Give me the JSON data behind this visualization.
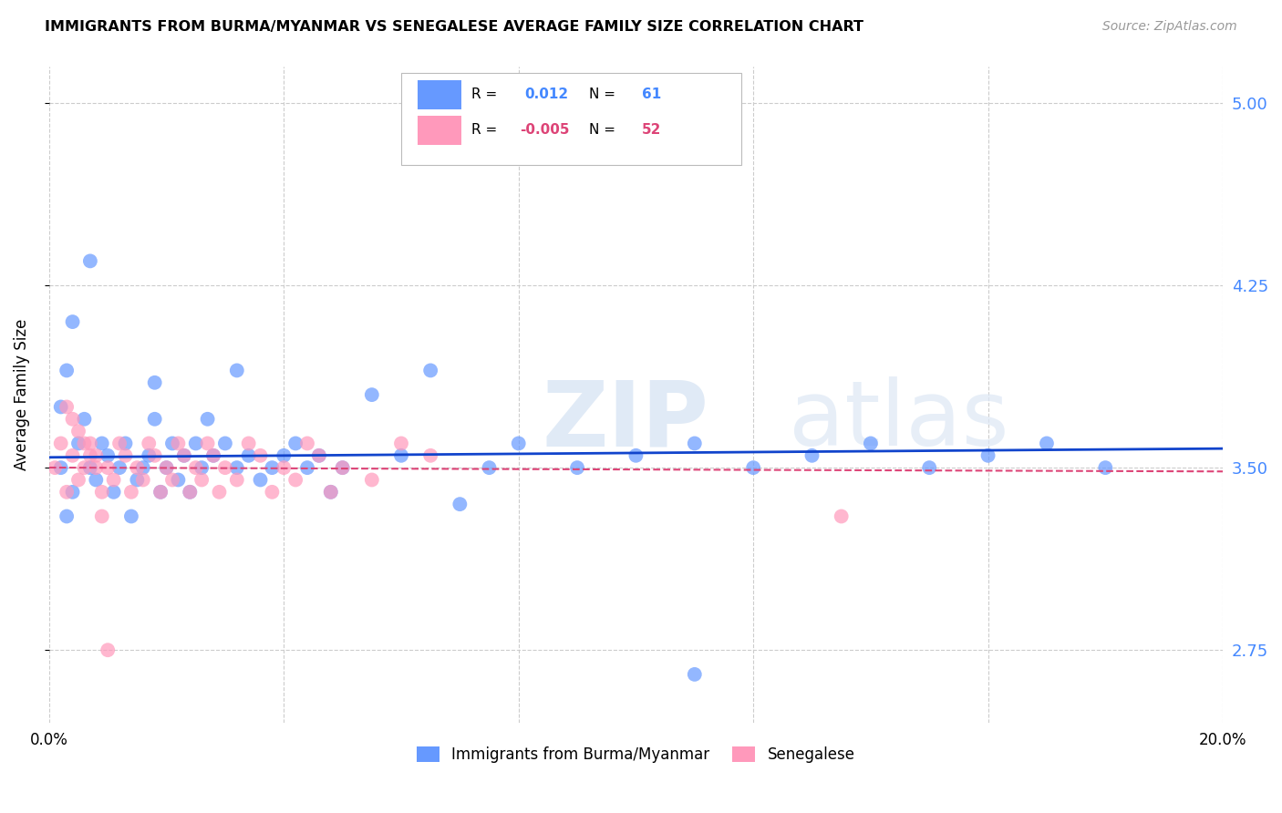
{
  "title": "IMMIGRANTS FROM BURMA/MYANMAR VS SENEGALESE AVERAGE FAMILY SIZE CORRELATION CHART",
  "source": "Source: ZipAtlas.com",
  "ylabel": "Average Family Size",
  "xlim": [
    0.0,
    0.2
  ],
  "ylim": [
    2.45,
    5.15
  ],
  "yticks": [
    2.75,
    3.5,
    4.25,
    5.0
  ],
  "xticks": [
    0.0,
    0.04,
    0.08,
    0.12,
    0.16,
    0.2
  ],
  "xtick_labels": [
    "0.0%",
    "",
    "",
    "",
    "",
    "20.0%"
  ],
  "legend_v1": "0.012",
  "legend_c1": "61",
  "legend_v2": "-0.005",
  "legend_c2": "52",
  "blue_color": "#6699ff",
  "pink_color": "#ff99bb",
  "blue_line_color": "#1144cc",
  "pink_line_color": "#dd4477",
  "grid_color": "#cccccc",
  "blue_scatter_x": [
    0.002,
    0.003,
    0.004,
    0.005,
    0.006,
    0.007,
    0.008,
    0.009,
    0.01,
    0.011,
    0.012,
    0.013,
    0.014,
    0.015,
    0.016,
    0.017,
    0.018,
    0.019,
    0.02,
    0.021,
    0.022,
    0.023,
    0.024,
    0.025,
    0.026,
    0.027,
    0.028,
    0.03,
    0.032,
    0.034,
    0.036,
    0.038,
    0.04,
    0.042,
    0.044,
    0.046,
    0.048,
    0.05,
    0.055,
    0.06,
    0.065,
    0.07,
    0.075,
    0.08,
    0.09,
    0.1,
    0.11,
    0.12,
    0.13,
    0.14,
    0.15,
    0.16,
    0.17,
    0.18,
    0.002,
    0.003,
    0.004,
    0.007,
    0.032,
    0.018,
    0.11
  ],
  "blue_scatter_y": [
    3.5,
    3.3,
    3.4,
    3.6,
    3.7,
    3.5,
    3.45,
    3.6,
    3.55,
    3.4,
    3.5,
    3.6,
    3.3,
    3.45,
    3.5,
    3.55,
    3.7,
    3.4,
    3.5,
    3.6,
    3.45,
    3.55,
    3.4,
    3.6,
    3.5,
    3.7,
    3.55,
    3.6,
    3.5,
    3.55,
    3.45,
    3.5,
    3.55,
    3.6,
    3.5,
    3.55,
    3.4,
    3.5,
    3.8,
    3.55,
    3.9,
    3.35,
    3.5,
    3.6,
    3.5,
    3.55,
    3.6,
    3.5,
    3.55,
    3.6,
    3.5,
    3.55,
    3.6,
    3.5,
    3.75,
    3.9,
    4.1,
    4.35,
    3.9,
    3.85,
    2.65
  ],
  "pink_scatter_x": [
    0.001,
    0.002,
    0.003,
    0.004,
    0.005,
    0.006,
    0.007,
    0.008,
    0.009,
    0.01,
    0.011,
    0.012,
    0.013,
    0.014,
    0.015,
    0.016,
    0.017,
    0.018,
    0.019,
    0.02,
    0.021,
    0.022,
    0.023,
    0.024,
    0.025,
    0.026,
    0.027,
    0.028,
    0.029,
    0.03,
    0.032,
    0.034,
    0.036,
    0.038,
    0.04,
    0.042,
    0.044,
    0.046,
    0.048,
    0.05,
    0.055,
    0.06,
    0.065,
    0.003,
    0.004,
    0.005,
    0.006,
    0.007,
    0.008,
    0.009,
    0.135,
    0.01
  ],
  "pink_scatter_y": [
    3.5,
    3.6,
    3.4,
    3.55,
    3.45,
    3.5,
    3.6,
    3.55,
    3.4,
    3.5,
    3.45,
    3.6,
    3.55,
    3.4,
    3.5,
    3.45,
    3.6,
    3.55,
    3.4,
    3.5,
    3.45,
    3.6,
    3.55,
    3.4,
    3.5,
    3.45,
    3.6,
    3.55,
    3.4,
    3.5,
    3.45,
    3.6,
    3.55,
    3.4,
    3.5,
    3.45,
    3.6,
    3.55,
    3.4,
    3.5,
    3.45,
    3.6,
    3.55,
    3.75,
    3.7,
    3.65,
    3.6,
    3.55,
    3.5,
    3.3,
    3.3,
    2.75
  ]
}
